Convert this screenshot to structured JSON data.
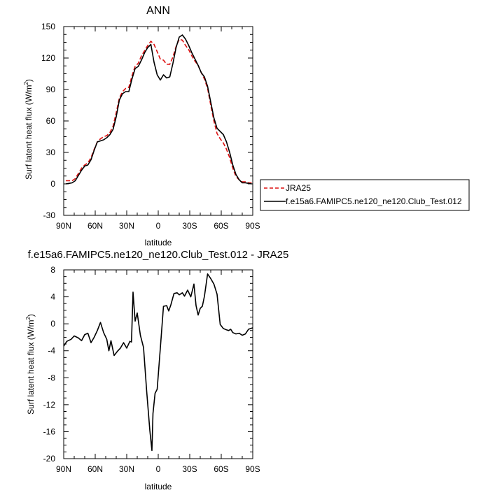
{
  "chart_data": [
    {
      "type": "line",
      "title": "ANN",
      "xlabel": "latitude",
      "ylabel": "Surf latent heat flux (W/m²)",
      "ylabel_main": "Surf latent heat flux (W/m",
      "ylabel_sup": "2",
      "ylabel_tail": ")",
      "xlim": [
        90,
        -90
      ],
      "ylim": [
        -30,
        150
      ],
      "yticks": [
        150,
        120,
        90,
        60,
        30,
        0,
        -30
      ],
      "ytick_labels": [
        "150",
        "120",
        "90",
        "60",
        "30",
        "0",
        "-30"
      ],
      "xticks": [
        90,
        60,
        30,
        0,
        -30,
        -60,
        -90
      ],
      "xtick_labels": [
        "90N",
        "60N",
        "30N",
        "0",
        "30S",
        "60S",
        "90S"
      ],
      "legend_position": "right",
      "series": [
        {
          "name": "JRA25",
          "color": "#dd1111",
          "dash": "dashed",
          "x": [
            88,
            85,
            82,
            79,
            76,
            73,
            70,
            67,
            64,
            61,
            58,
            55,
            52,
            49,
            46,
            43,
            40,
            37,
            34,
            31,
            28,
            25,
            22,
            19,
            16,
            13,
            10,
            7,
            4,
            1,
            -2,
            -5,
            -8,
            -11,
            -14,
            -17,
            -20,
            -23,
            -26,
            -29,
            -32,
            -35,
            -38,
            -41,
            -44,
            -47,
            -50,
            -53,
            -56,
            -59,
            -62,
            -65,
            -68,
            -71,
            -74,
            -77,
            -80,
            -83,
            -86,
            -89
          ],
          "y": [
            3,
            3,
            3,
            5,
            10,
            15,
            18,
            20,
            25,
            33,
            40,
            43,
            45,
            46,
            49,
            55,
            68,
            82,
            88,
            91,
            92,
            103,
            112,
            115,
            122,
            127,
            132,
            136,
            133,
            126,
            119,
            118,
            114,
            114,
            121,
            131,
            138,
            137,
            132,
            128,
            122,
            117,
            113,
            106,
            100,
            91,
            75,
            60,
            48,
            43,
            39,
            33,
            25,
            15,
            7,
            4,
            2,
            2,
            1,
            1
          ]
        },
        {
          "name": "f.e15a6.FAMIPC5.ne120_ne120.Club_Test.012",
          "color": "#000000",
          "dash": "solid",
          "x": [
            88,
            85,
            82,
            79,
            76,
            73,
            70,
            67,
            64,
            61,
            58,
            55,
            52,
            49,
            46,
            43,
            40,
            37,
            34,
            31,
            28,
            25,
            22,
            19,
            16,
            13,
            10,
            7,
            4,
            1,
            -2,
            -5,
            -8,
            -11,
            -14,
            -17,
            -20,
            -23,
            -26,
            -29,
            -32,
            -35,
            -38,
            -41,
            -44,
            -47,
            -50,
            -53,
            -56,
            -59,
            -62,
            -65,
            -68,
            -71,
            -74,
            -77,
            -80,
            -83,
            -86,
            -89
          ],
          "y": [
            0,
            0.5,
            1,
            3,
            8,
            13,
            17,
            18,
            23,
            32,
            40,
            41,
            42,
            44,
            47,
            52,
            64,
            80,
            86,
            88,
            88,
            100,
            110,
            112,
            118,
            125,
            130,
            133,
            116,
            104,
            99,
            104,
            101,
            102,
            115,
            130,
            140,
            142,
            138,
            132,
            125,
            119,
            113,
            106,
            102,
            93,
            78,
            63,
            53,
            50,
            47,
            40,
            30,
            18,
            9,
            4,
            1,
            1,
            0.5,
            0
          ]
        }
      ]
    },
    {
      "type": "line",
      "title": "f.e15a6.FAMIPC5.ne120_ne120.Club_Test.012 - JRA25",
      "xlabel": "latitude",
      "ylabel": "Surf latent heat flux (W/m²)",
      "ylabel_main": "Surf latent heat flux (W/m",
      "ylabel_sup": "2",
      "ylabel_tail": ")",
      "xlim": [
        90,
        -90
      ],
      "ylim": [
        -20,
        8
      ],
      "yticks": [
        8,
        4,
        0,
        -4,
        -8,
        -12,
        -16,
        -20
      ],
      "ytick_labels": [
        "8",
        "4",
        "0",
        "-4",
        "-8",
        "-12",
        "-16",
        "-20"
      ],
      "xticks": [
        90,
        60,
        30,
        0,
        -30,
        -60,
        -90
      ],
      "xtick_labels": [
        "90N",
        "60N",
        "30N",
        "0",
        "30S",
        "60S",
        "90S"
      ],
      "series": [
        {
          "color": "#000000",
          "dash": "solid",
          "x": [
            90,
            87,
            83,
            80,
            76,
            73,
            70,
            67,
            64,
            61,
            58,
            55,
            52,
            49,
            47,
            45,
            42,
            39,
            36,
            33,
            30,
            27,
            25.5,
            24,
            22,
            20,
            17,
            14,
            11,
            8,
            6,
            5,
            3,
            1,
            -2,
            -5,
            -8,
            -10,
            -12,
            -15,
            -18,
            -20,
            -23,
            -25,
            -28,
            -31,
            -34,
            -36,
            -38,
            -40,
            -42,
            -44,
            -47,
            -50,
            -53,
            -56,
            -59,
            -62,
            -65,
            -67,
            -69,
            -71,
            -74,
            -77,
            -80,
            -83,
            -86,
            -90
          ],
          "y": [
            -3.3,
            -2.6,
            -2.3,
            -1.8,
            -2.1,
            -2.5,
            -1.6,
            -1.4,
            -2.8,
            -2.0,
            -1.0,
            0.2,
            -1.3,
            -2.3,
            -4.0,
            -2.5,
            -4.7,
            -4.1,
            -3.6,
            -2.8,
            -3.6,
            -2.6,
            -2.7,
            4.7,
            0.4,
            1.6,
            -1.7,
            -3.5,
            -10.0,
            -15.8,
            -18.8,
            -13.3,
            -10.3,
            -9.7,
            -3.6,
            2.6,
            2.7,
            1.9,
            2.8,
            4.5,
            4.6,
            4.3,
            4.6,
            4.1,
            5.0,
            4.0,
            5.9,
            2.7,
            1.3,
            2.3,
            2.6,
            4.1,
            7.4,
            6.7,
            5.9,
            4.4,
            -0.1,
            -0.7,
            -0.9,
            -1.0,
            -0.8,
            -1.3,
            -1.5,
            -1.4,
            -1.7,
            -1.5,
            -0.8,
            -0.6
          ]
        }
      ]
    }
  ]
}
